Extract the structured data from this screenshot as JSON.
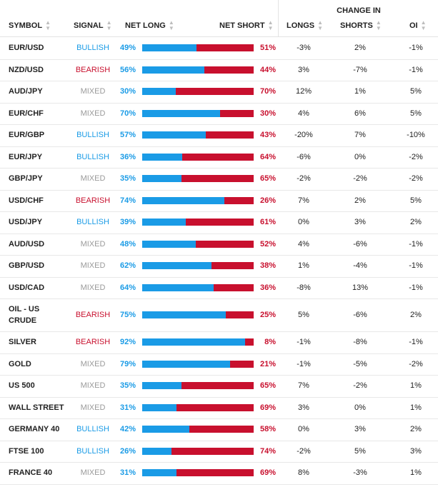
{
  "header": {
    "group_label": "CHANGE IN",
    "columns": {
      "symbol": "SYMBOL",
      "signal": "SIGNAL",
      "net_long": "NET LONG",
      "net_short": "NET SHORT",
      "longs": "LONGS",
      "shorts": "SHORTS",
      "oi": "OI"
    },
    "sort_icon": "sort-arrows-icon"
  },
  "colors": {
    "long_blue": "#1a9be6",
    "short_red": "#c8102e",
    "bullish": "#1a9be6",
    "bearish": "#c8102e",
    "mixed": "#9a9a9a"
  },
  "rows": [
    {
      "symbol": "EUR/USD",
      "signal": "BULLISH",
      "net_long": "49%",
      "net_short": "51%",
      "longs": "-3%",
      "shorts": "2%",
      "oi": "-1%"
    },
    {
      "symbol": "NZD/USD",
      "signal": "BEARISH",
      "net_long": "56%",
      "net_short": "44%",
      "longs": "3%",
      "shorts": "-7%",
      "oi": "-1%"
    },
    {
      "symbol": "AUD/JPY",
      "signal": "MIXED",
      "net_long": "30%",
      "net_short": "70%",
      "longs": "12%",
      "shorts": "1%",
      "oi": "5%"
    },
    {
      "symbol": "EUR/CHF",
      "signal": "MIXED",
      "net_long": "70%",
      "net_short": "30%",
      "longs": "4%",
      "shorts": "6%",
      "oi": "5%"
    },
    {
      "symbol": "EUR/GBP",
      "signal": "BULLISH",
      "net_long": "57%",
      "net_short": "43%",
      "longs": "-20%",
      "shorts": "7%",
      "oi": "-10%"
    },
    {
      "symbol": "EUR/JPY",
      "signal": "BULLISH",
      "net_long": "36%",
      "net_short": "64%",
      "longs": "-6%",
      "shorts": "0%",
      "oi": "-2%"
    },
    {
      "symbol": "GBP/JPY",
      "signal": "MIXED",
      "net_long": "35%",
      "net_short": "65%",
      "longs": "-2%",
      "shorts": "-2%",
      "oi": "-2%"
    },
    {
      "symbol": "USD/CHF",
      "signal": "BEARISH",
      "net_long": "74%",
      "net_short": "26%",
      "longs": "7%",
      "shorts": "2%",
      "oi": "5%"
    },
    {
      "symbol": "USD/JPY",
      "signal": "BULLISH",
      "net_long": "39%",
      "net_short": "61%",
      "longs": "0%",
      "shorts": "3%",
      "oi": "2%"
    },
    {
      "symbol": "AUD/USD",
      "signal": "MIXED",
      "net_long": "48%",
      "net_short": "52%",
      "longs": "4%",
      "shorts": "-6%",
      "oi": "-1%"
    },
    {
      "symbol": "GBP/USD",
      "signal": "MIXED",
      "net_long": "62%",
      "net_short": "38%",
      "longs": "1%",
      "shorts": "-4%",
      "oi": "-1%"
    },
    {
      "symbol": "USD/CAD",
      "signal": "MIXED",
      "net_long": "64%",
      "net_short": "36%",
      "longs": "-8%",
      "shorts": "13%",
      "oi": "-1%"
    },
    {
      "symbol": "OIL - US CRUDE",
      "signal": "BEARISH",
      "net_long": "75%",
      "net_short": "25%",
      "longs": "5%",
      "shorts": "-6%",
      "oi": "2%"
    },
    {
      "symbol": "SILVER",
      "signal": "BEARISH",
      "net_long": "92%",
      "net_short": "8%",
      "longs": "-1%",
      "shorts": "-8%",
      "oi": "-1%"
    },
    {
      "symbol": "GOLD",
      "signal": "MIXED",
      "net_long": "79%",
      "net_short": "21%",
      "longs": "-1%",
      "shorts": "-5%",
      "oi": "-2%"
    },
    {
      "symbol": "US 500",
      "signal": "MIXED",
      "net_long": "35%",
      "net_short": "65%",
      "longs": "7%",
      "shorts": "-2%",
      "oi": "1%"
    },
    {
      "symbol": "WALL STREET",
      "signal": "MIXED",
      "net_long": "31%",
      "net_short": "69%",
      "longs": "3%",
      "shorts": "0%",
      "oi": "1%"
    },
    {
      "symbol": "GERMANY 40",
      "signal": "BULLISH",
      "net_long": "42%",
      "net_short": "58%",
      "longs": "0%",
      "shorts": "3%",
      "oi": "2%"
    },
    {
      "symbol": "FTSE 100",
      "signal": "BULLISH",
      "net_long": "26%",
      "net_short": "74%",
      "longs": "-2%",
      "shorts": "5%",
      "oi": "3%"
    },
    {
      "symbol": "FRANCE 40",
      "signal": "MIXED",
      "net_long": "31%",
      "net_short": "69%",
      "longs": "8%",
      "shorts": "-3%",
      "oi": "1%"
    }
  ]
}
